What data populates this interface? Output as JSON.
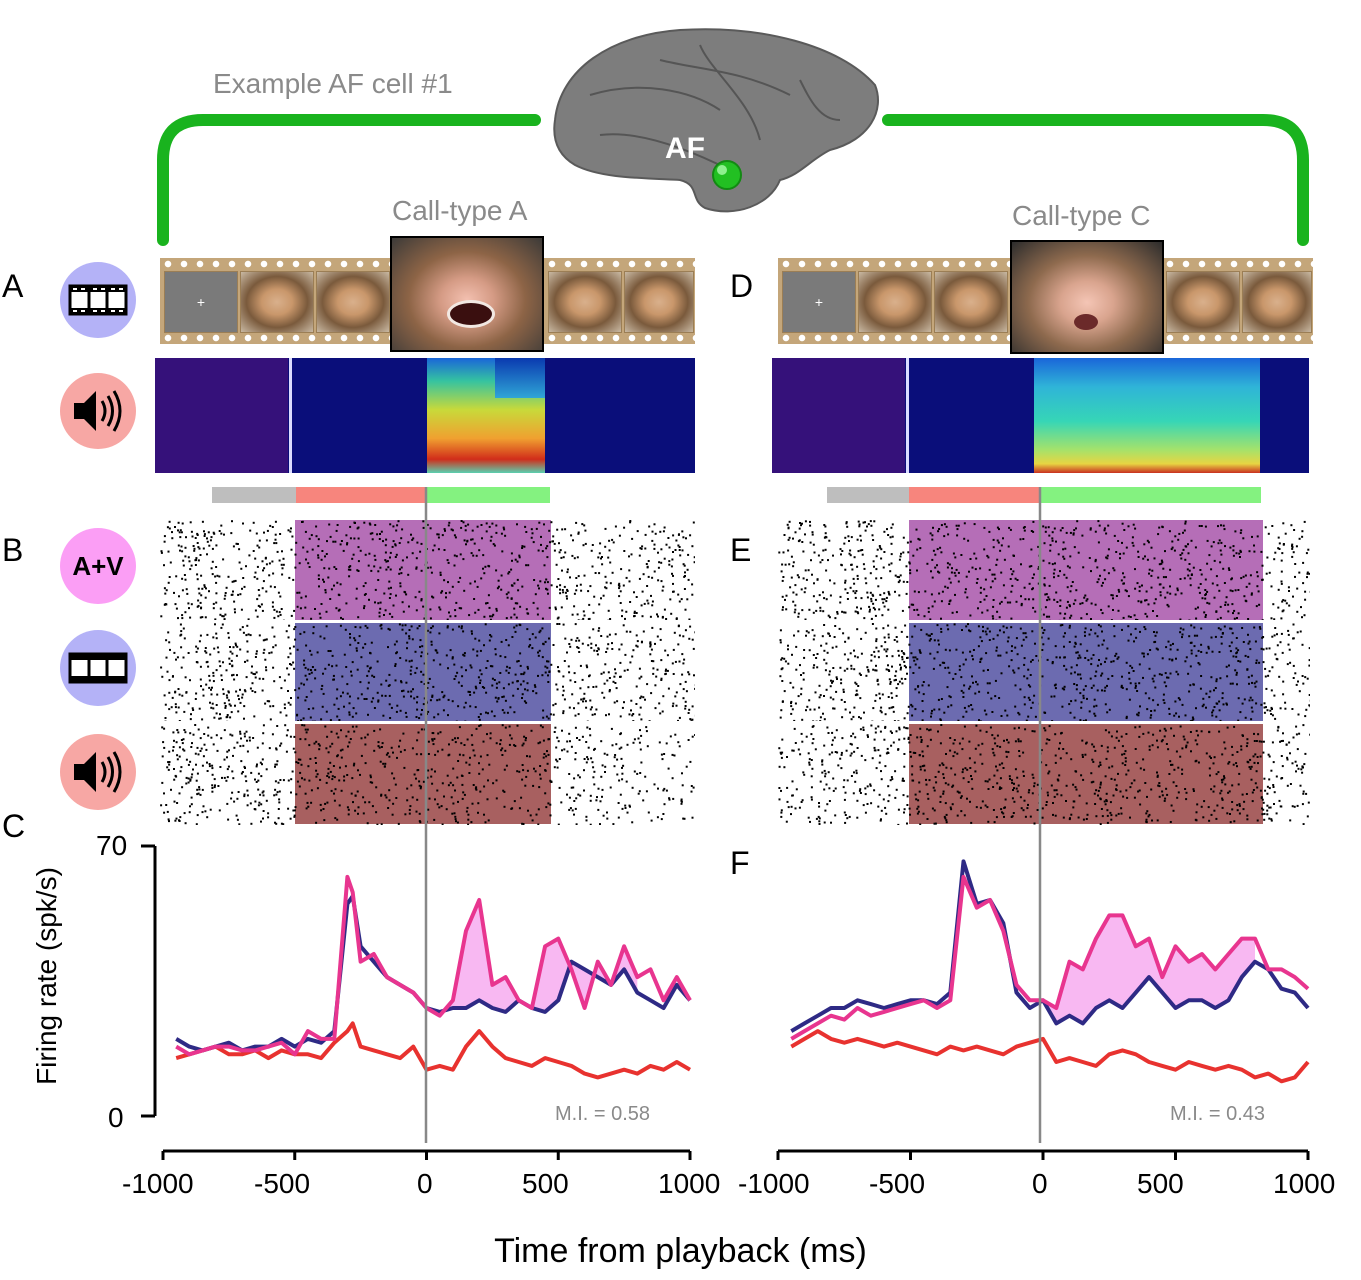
{
  "figure": {
    "header_title": "Example AF cell #1",
    "brain_label": "AF",
    "bracket_color": "#19b31e",
    "left_panel": {
      "call_type_label": "Call-type A",
      "panel_A": "A",
      "panel_B": "B",
      "panel_C": "C",
      "mi_label": "M.I. = 0.58"
    },
    "right_panel": {
      "call_type_label": "Call-type C",
      "panel_D": "D",
      "panel_E": "E",
      "panel_F": "F",
      "mi_label": "M.I. = 0.43"
    },
    "icons": {
      "video_icon": "film-strip-icon",
      "audio_icon": "speaker-icon",
      "av_label": "A+V"
    },
    "colors": {
      "video": "#b4b2f7",
      "audio": "#f7a7a4",
      "av": "#fb9ef5",
      "av_trace": "#e8358f",
      "video_trace": "#2e2a85",
      "audio_trace": "#e8322f",
      "epoch_baseline": "#bebebe",
      "epoch_visual": "#f7857d",
      "epoch_audio": "#84f280"
    },
    "y_axis": {
      "label": "Firing rate (spk/s)",
      "max_tick": "70",
      "min_tick": "0"
    },
    "x_axis": {
      "label": "Time from playback (ms)",
      "ticks": [
        "-1000",
        "-500",
        "0",
        "500",
        "1000"
      ]
    }
  },
  "chart_data": [
    {
      "type": "line",
      "xlabel": "Time from playback (ms)",
      "ylabel": "Firing rate (spk/s)",
      "xlim": [
        -1000,
        1000
      ],
      "ylim": [
        0,
        70
      ],
      "x": [
        -950,
        -900,
        -850,
        -800,
        -750,
        -700,
        -650,
        -600,
        -550,
        -500,
        -450,
        -400,
        -350,
        -300,
        -280,
        -250,
        -200,
        -150,
        -100,
        -50,
        0,
        50,
        100,
        150,
        200,
        250,
        300,
        350,
        400,
        450,
        500,
        550,
        600,
        650,
        700,
        750,
        800,
        850,
        900,
        950,
        1000
      ],
      "series": [
        {
          "values": [
            18,
            16,
            17,
            18,
            18,
            17,
            17,
            18,
            19,
            16,
            22,
            20,
            20,
            62,
            58,
            40,
            42,
            36,
            34,
            32,
            28,
            26,
            30,
            48,
            56,
            34,
            36,
            30,
            28,
            44,
            46,
            38,
            28,
            40,
            34,
            44,
            36,
            38,
            30,
            36,
            30
          ]
        },
        {
          "values": [
            20,
            18,
            17,
            18,
            19,
            17,
            18,
            18,
            20,
            18,
            20,
            19,
            22,
            55,
            57,
            44,
            40,
            36,
            34,
            32,
            28,
            27,
            28,
            28,
            30,
            28,
            27,
            30,
            28,
            27,
            30,
            40,
            38,
            36,
            34,
            38,
            32,
            30,
            28,
            34,
            30
          ]
        },
        {
          "values": [
            15,
            16,
            17,
            18,
            16,
            16,
            17,
            15,
            17,
            16,
            16,
            15,
            19,
            22,
            24,
            18,
            17,
            16,
            15,
            18,
            12,
            13,
            12,
            18,
            22,
            18,
            15,
            14,
            13,
            15,
            14,
            13,
            11,
            10,
            11,
            12,
            11,
            13,
            12,
            14,
            12
          ]
        }
      ]
    },
    {
      "type": "line",
      "xlabel": "Time from playback (ms)",
      "ylabel": "Firing rate (spk/s)",
      "xlim": [
        -1000,
        1000
      ],
      "ylim": [
        0,
        70
      ],
      "x": [
        -950,
        -900,
        -850,
        -800,
        -750,
        -700,
        -650,
        -600,
        -550,
        -500,
        -450,
        -400,
        -350,
        -300,
        -250,
        -200,
        -150,
        -100,
        -50,
        0,
        50,
        100,
        150,
        200,
        250,
        300,
        350,
        400,
        450,
        500,
        550,
        600,
        650,
        700,
        750,
        800,
        850,
        900,
        950,
        1000
      ],
      "series": [
        {
          "values": [
            20,
            22,
            24,
            26,
            25,
            28,
            26,
            27,
            28,
            29,
            30,
            28,
            30,
            62,
            54,
            56,
            48,
            34,
            30,
            30,
            28,
            40,
            38,
            46,
            52,
            52,
            44,
            46,
            36,
            44,
            40,
            42,
            38,
            42,
            46,
            46,
            38,
            38,
            36,
            33
          ]
        },
        {
          "values": [
            22,
            24,
            26,
            28,
            28,
            30,
            29,
            28,
            29,
            30,
            30,
            29,
            32,
            66,
            55,
            56,
            50,
            32,
            28,
            30,
            24,
            26,
            24,
            28,
            30,
            28,
            32,
            36,
            32,
            28,
            30,
            30,
            28,
            30,
            36,
            40,
            38,
            33,
            32,
            28
          ]
        },
        {
          "values": [
            18,
            20,
            22,
            20,
            19,
            20,
            19,
            18,
            19,
            18,
            17,
            16,
            18,
            17,
            18,
            17,
            16,
            18,
            19,
            20,
            14,
            15,
            14,
            13,
            16,
            17,
            16,
            14,
            13,
            12,
            14,
            13,
            12,
            13,
            12,
            10,
            11,
            9,
            10,
            14
          ]
        }
      ]
    }
  ]
}
